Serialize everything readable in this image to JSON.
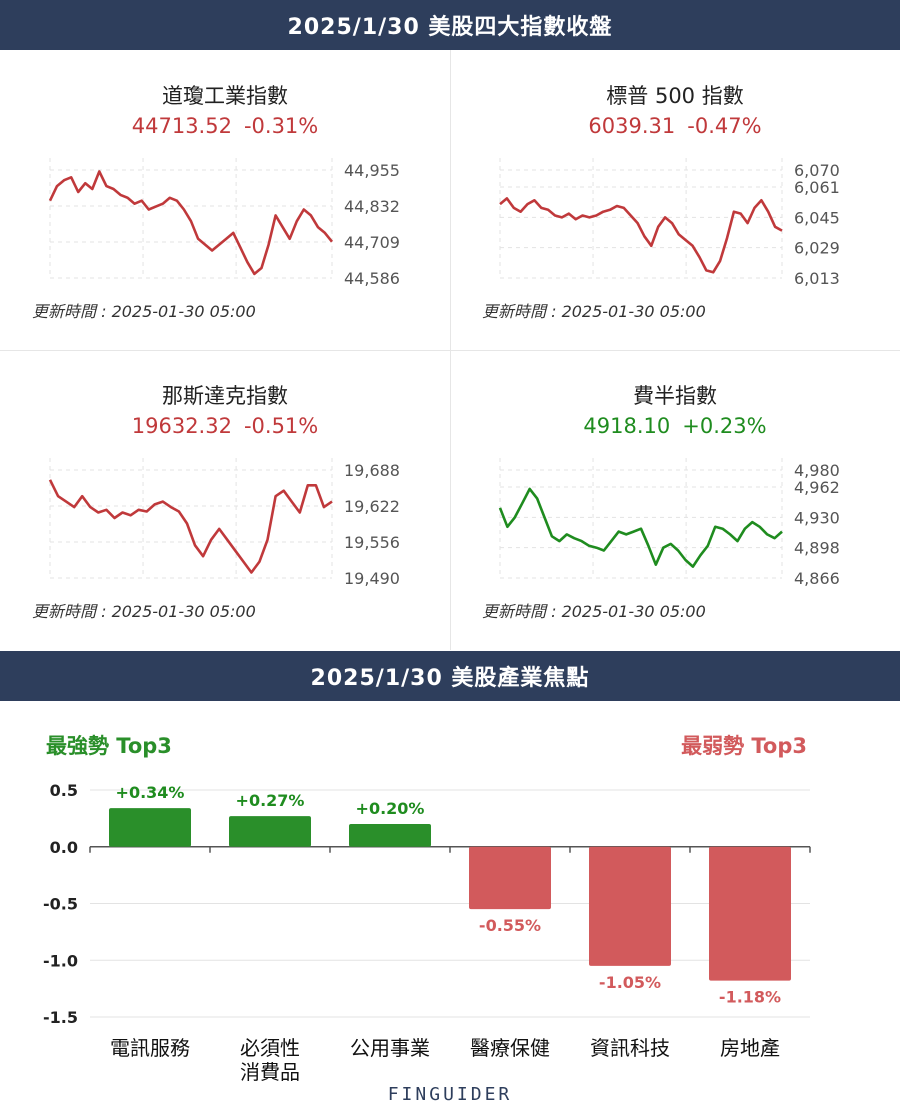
{
  "header": {
    "title": "2025/1/30 美股四大指數收盤"
  },
  "sector_header": {
    "title": "2025/1/30 美股產業焦點"
  },
  "update_label": "更新時間 : 2025-01-30 05:00",
  "colors": {
    "banner": "#2e3e5c",
    "down": "#c0393b",
    "up": "#1f8c1f",
    "bar_down": "#d25a5c",
    "bar_up": "#2a8f2a"
  },
  "indices": [
    {
      "name": "道瓊工業指數",
      "value": "44713.52",
      "change": "-0.31%",
      "dir": "down",
      "yticks": [
        "44,955",
        "44,832",
        "44,709",
        "44,586"
      ],
      "chart_data": {
        "type": "line",
        "ylim": [
          44586,
          44955
        ],
        "values": [
          44850,
          44900,
          44920,
          44930,
          44880,
          44910,
          44890,
          44950,
          44900,
          44890,
          44870,
          44860,
          44840,
          44850,
          44820,
          44830,
          44840,
          44860,
          44850,
          44820,
          44780,
          44720,
          44700,
          44680,
          44700,
          44720,
          44740,
          44690,
          44640,
          44600,
          44620,
          44700,
          44800,
          44760,
          44720,
          44780,
          44820,
          44800,
          44760,
          44740,
          44710
        ]
      }
    },
    {
      "name": "標普 500 指數",
      "value": "6039.31",
      "change": "-0.47%",
      "dir": "down",
      "yticks": [
        "6,070",
        "6,061",
        "6,045",
        "6,029",
        "6,013"
      ],
      "chart_data": {
        "type": "line",
        "ylim": [
          6013,
          6070
        ],
        "values": [
          6052,
          6055,
          6050,
          6048,
          6052,
          6054,
          6050,
          6049,
          6046,
          6045,
          6047,
          6044,
          6046,
          6045,
          6046,
          6048,
          6049,
          6051,
          6050,
          6046,
          6042,
          6035,
          6030,
          6040,
          6045,
          6042,
          6036,
          6033,
          6030,
          6024,
          6017,
          6016,
          6022,
          6034,
          6048,
          6047,
          6042,
          6050,
          6054,
          6048,
          6040,
          6038
        ]
      }
    },
    {
      "name": "那斯達克指數",
      "value": "19632.32",
      "change": "-0.51%",
      "dir": "down",
      "yticks": [
        "19,688",
        "19,622",
        "19,556",
        "19,490"
      ],
      "chart_data": {
        "type": "line",
        "ylim": [
          19490,
          19688
        ],
        "values": [
          19670,
          19640,
          19630,
          19620,
          19640,
          19620,
          19610,
          19615,
          19600,
          19610,
          19605,
          19615,
          19612,
          19625,
          19630,
          19620,
          19612,
          19590,
          19550,
          19530,
          19560,
          19580,
          19560,
          19540,
          19520,
          19500,
          19520,
          19560,
          19640,
          19650,
          19630,
          19610,
          19660,
          19660,
          19620,
          19630
        ]
      }
    },
    {
      "name": "費半指數",
      "value": "4918.10",
      "change": "+0.23%",
      "dir": "up",
      "yticks": [
        "4,980",
        "4,962",
        "4,930",
        "4,898",
        "4,866"
      ],
      "chart_data": {
        "type": "line",
        "ylim": [
          4866,
          4980
        ],
        "values": [
          4940,
          4920,
          4930,
          4945,
          4960,
          4950,
          4930,
          4910,
          4905,
          4912,
          4908,
          4905,
          4900,
          4898,
          4895,
          4905,
          4915,
          4912,
          4915,
          4918,
          4900,
          4880,
          4898,
          4902,
          4895,
          4885,
          4878,
          4890,
          4900,
          4920,
          4918,
          4912,
          4905,
          4918,
          4925,
          4920,
          4912,
          4908,
          4915
        ]
      }
    }
  ],
  "sector": {
    "strong_label": "最強勢 Top3",
    "weak_label": "最弱勢 Top3",
    "chart_data": {
      "type": "bar",
      "categories": [
        "電訊服務",
        "必須性消費品",
        "公用事業",
        "醫療保健",
        "資訊科技",
        "房地產"
      ],
      "category_lines": [
        [
          "電訊服務"
        ],
        [
          "必須性",
          "消費品"
        ],
        [
          "公用事業"
        ],
        [
          "醫療保健"
        ],
        [
          "資訊科技"
        ],
        [
          "房地產"
        ]
      ],
      "values": [
        0.34,
        0.27,
        0.2,
        -0.55,
        -1.05,
        -1.18
      ],
      "labels": [
        "+0.34%",
        "+0.27%",
        "+0.20%",
        "-0.55%",
        "-1.05%",
        "-1.18%"
      ],
      "yticks": [
        "0.5",
        "0.0",
        "-0.5",
        "-1.0",
        "-1.5"
      ],
      "ylim": [
        -1.5,
        0.5
      ]
    }
  },
  "logo": "FINGUIDER"
}
